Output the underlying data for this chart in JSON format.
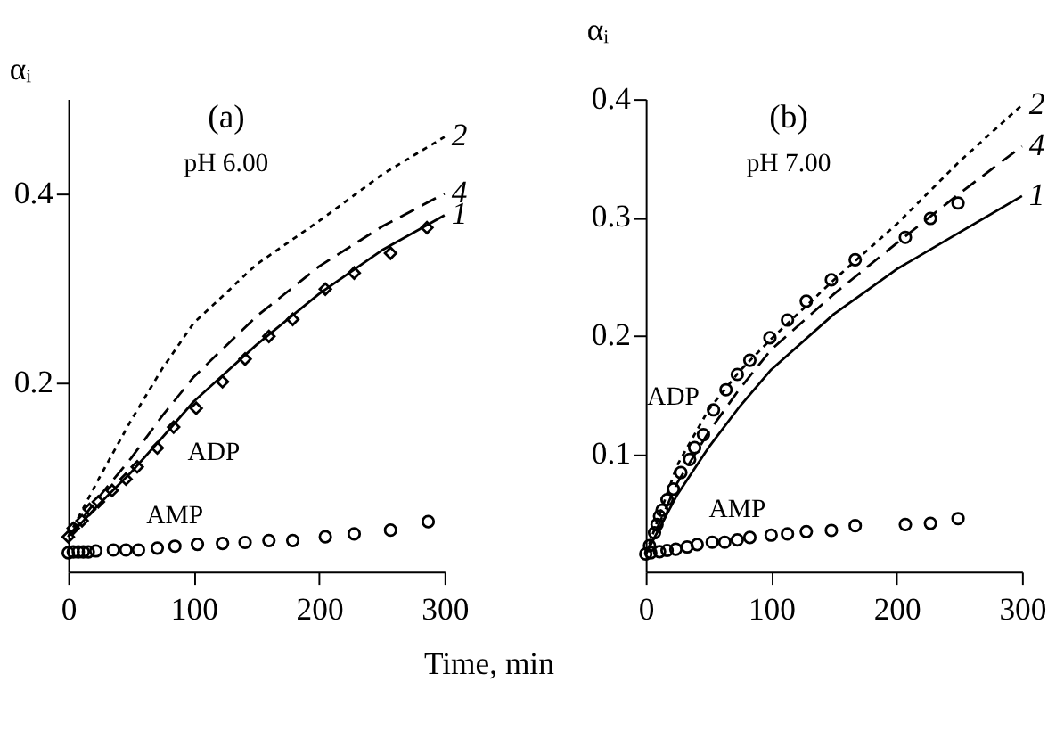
{
  "chart_data": [
    {
      "type": "line",
      "xlabel": "Time, min",
      "ylabel": "αᵢ",
      "annotations": [
        "(a)",
        "pH 6.00"
      ],
      "xlim": [
        0,
        300
      ],
      "ylim": [
        0,
        0.5
      ],
      "xticks": [
        0,
        100,
        200,
        300
      ],
      "yticks": [
        0.2,
        0.4
      ],
      "grid": false,
      "x": [
        0,
        25,
        50,
        75,
        100,
        150,
        200,
        250,
        300
      ],
      "series": [
        {
          "name": "2",
          "color": "#000000",
          "line_style": "dotted",
          "values": [
            0.037,
            0.1,
            0.16,
            0.215,
            0.263,
            0.325,
            0.371,
            0.42,
            0.46
          ]
        },
        {
          "name": "4",
          "color": "#000000",
          "line_style": "dashed",
          "values": [
            0.037,
            0.08,
            0.12,
            0.165,
            0.206,
            0.27,
            0.323,
            0.365,
            0.4
          ]
        },
        {
          "name": "1",
          "color": "#000000",
          "line_style": "solid",
          "values": [
            0.037,
            0.072,
            0.105,
            0.142,
            0.18,
            0.24,
            0.294,
            0.34,
            0.377
          ]
        },
        {
          "name": "ADP",
          "type": "scatter",
          "marker": "diamond",
          "color": "#000000",
          "x": [
            0,
            4,
            11,
            17,
            24,
            35,
            46,
            55,
            71,
            84,
            102,
            123,
            141,
            160,
            179,
            205,
            228,
            257,
            286
          ],
          "values": [
            0.037,
            0.046,
            0.054,
            0.066,
            0.074,
            0.086,
            0.098,
            0.111,
            0.131,
            0.153,
            0.173,
            0.201,
            0.225,
            0.249,
            0.267,
            0.299,
            0.316,
            0.337,
            0.364
          ]
        },
        {
          "name": "AMP",
          "type": "scatter",
          "marker": "circle",
          "color": "#000000",
          "x": [
            0,
            4,
            8,
            12,
            16,
            22,
            36,
            46,
            56,
            71,
            85,
            103,
            123,
            141,
            160,
            179,
            205,
            228,
            257,
            287
          ],
          "values": [
            0.02,
            0.021,
            0.021,
            0.021,
            0.021,
            0.022,
            0.023,
            0.023,
            0.023,
            0.025,
            0.027,
            0.029,
            0.03,
            0.031,
            0.033,
            0.033,
            0.037,
            0.04,
            0.044,
            0.053
          ]
        }
      ]
    },
    {
      "type": "line",
      "ylabel": "αᵢ",
      "annotations": [
        "(b)",
        "pH 7.00"
      ],
      "xlim": [
        0,
        300
      ],
      "ylim": [
        0,
        0.4
      ],
      "xticks": [
        0,
        100,
        200,
        300
      ],
      "yticks": [
        0.1,
        0.2,
        0.3,
        0.4
      ],
      "grid": false,
      "x": [
        0,
        25,
        50,
        75,
        100,
        150,
        200,
        250,
        300
      ],
      "series": [
        {
          "name": "2",
          "color": "#000000",
          "line_style": "dotted",
          "values": [
            0.015,
            0.09,
            0.137,
            0.17,
            0.197,
            0.247,
            0.294,
            0.347,
            0.395
          ]
        },
        {
          "name": "4",
          "color": "#000000",
          "line_style": "dashed",
          "values": [
            0.015,
            0.075,
            0.118,
            0.155,
            0.188,
            0.235,
            0.278,
            0.32,
            0.36
          ]
        },
        {
          "name": "1",
          "color": "#000000",
          "line_style": "solid",
          "values": [
            0.015,
            0.065,
            0.105,
            0.14,
            0.171,
            0.218,
            0.256,
            0.287,
            0.318
          ]
        },
        {
          "name": "ADP",
          "type": "scatter",
          "marker": "circle",
          "color": "#000000",
          "x": [
            3,
            7,
            9,
            11,
            13,
            17,
            22,
            28,
            35,
            39,
            46,
            54,
            64,
            73,
            83,
            99,
            113,
            128,
            148,
            167,
            207,
            227,
            249
          ],
          "values": [
            0.022,
            0.033,
            0.04,
            0.047,
            0.052,
            0.061,
            0.07,
            0.084,
            0.095,
            0.105,
            0.116,
            0.137,
            0.154,
            0.167,
            0.179,
            0.198,
            0.213,
            0.229,
            0.247,
            0.264,
            0.283,
            0.299,
            0.312
          ]
        },
        {
          "name": "AMP",
          "type": "scatter",
          "marker": "circle",
          "color": "#000000",
          "x": [
            0,
            4,
            11,
            17,
            24,
            33,
            41,
            53,
            63,
            73,
            83,
            100,
            113,
            128,
            148,
            167,
            207,
            227,
            249
          ],
          "values": [
            0.015,
            0.016,
            0.017,
            0.018,
            0.019,
            0.021,
            0.023,
            0.025,
            0.025,
            0.027,
            0.029,
            0.031,
            0.032,
            0.034,
            0.035,
            0.039,
            0.04,
            0.041,
            0.045
          ]
        }
      ]
    }
  ]
}
